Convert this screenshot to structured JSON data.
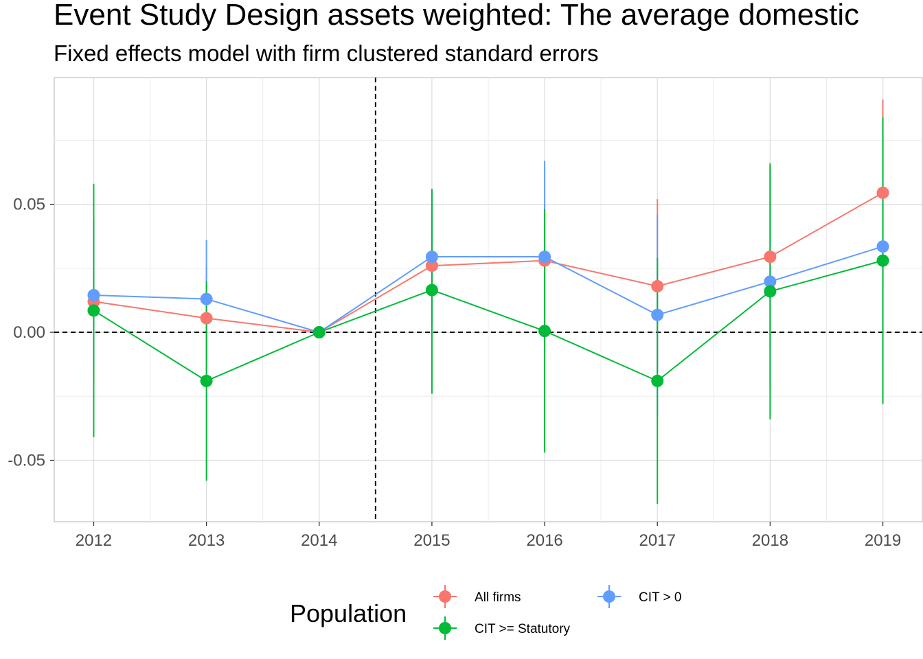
{
  "chart_data": {
    "type": "line",
    "title": "Event Study Design assets weighted: The average domestic",
    "subtitle": "Fixed effects model with firm clustered standard errors",
    "xlabel": "",
    "ylabel": "",
    "x": [
      2012,
      2013,
      2014,
      2015,
      2016,
      2017,
      2018,
      2019
    ],
    "x_tick_labels": [
      "2012",
      "2013",
      "2014",
      "2015",
      "2016",
      "2017",
      "2018",
      "2019"
    ],
    "y_ticks": [
      0.05,
      0.0,
      -0.05
    ],
    "y_tick_labels": [
      "0.05",
      "0.00",
      "-0.05"
    ],
    "xlim": [
      2011.65,
      2019.35
    ],
    "ylim": [
      -0.074,
      0.0995
    ],
    "grid": true,
    "reference_lines": {
      "vertical_x": 2014.5,
      "horizontal_y": 0
    },
    "legend": {
      "title": "Population",
      "placement": "bottom",
      "entries": [
        "All firms",
        "CIT > 0",
        "CIT >= Statutory"
      ]
    },
    "series": [
      {
        "name": "All firms",
        "color": "#F8766D",
        "values": [
          0.012,
          0.0055,
          0.0,
          0.026,
          0.028,
          0.018,
          0.0295,
          0.0545
        ],
        "lower": [
          -0.02,
          -0.015,
          0.0,
          0.004,
          0.006,
          -0.016,
          -0.006,
          0.018
        ],
        "upper": [
          0.044,
          0.026,
          0.0,
          0.048,
          0.05,
          0.052,
          0.065,
          0.091
        ]
      },
      {
        "name": "CIT > 0",
        "color": "#619CFF",
        "values": [
          0.0145,
          0.013,
          0.0,
          0.0295,
          0.0295,
          0.0068,
          0.0198,
          0.0335
        ],
        "lower": [
          -0.015,
          -0.01,
          0.0,
          0.003,
          -0.008,
          -0.033,
          -0.022,
          -0.011
        ],
        "upper": [
          0.044,
          0.036,
          0.0,
          0.056,
          0.067,
          0.046,
          0.064,
          0.078
        ]
      },
      {
        "name": "CIT >= Statutory",
        "color": "#00BA38",
        "values": [
          0.0085,
          -0.019,
          0.0,
          0.0165,
          0.0005,
          -0.019,
          0.016,
          0.028
        ],
        "lower": [
          -0.041,
          -0.058,
          0.0,
          -0.024,
          -0.047,
          -0.067,
          -0.034,
          -0.028
        ],
        "upper": [
          0.058,
          0.02,
          0.0,
          0.056,
          0.048,
          0.029,
          0.066,
          0.084
        ]
      }
    ]
  }
}
